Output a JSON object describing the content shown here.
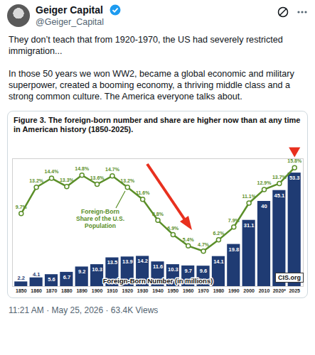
{
  "post": {
    "name": "Geiger Capital",
    "handle": "@Geiger_Capital",
    "text": [
      "They don’t teach that from 1920-1970, the US had severely restricted immigration...",
      "In those 50 years we won WW2, became a global economic and military superpower, created a booming economy, a thriving middle class and a strong common culture. The America everyone talks about."
    ],
    "meta": "11:21 AM · May 25, 2026 · 63.4K Views"
  },
  "chart_data": {
    "type": "bar",
    "title": "Figure 3. The foreign-born number and share are higher now than at any time in American history (1850-2025).",
    "categories": [
      "1850",
      "1860",
      "1870",
      "1880",
      "1890",
      "1900",
      "1910",
      "1920",
      "1930",
      "1940",
      "1950",
      "1960",
      "1970",
      "1980",
      "1990",
      "2000",
      "2010",
      "2020*",
      "2025"
    ],
    "series": [
      {
        "name": "Foreign-Born Number (in millions)",
        "type": "bar",
        "color": "#1f3b73",
        "values": [
          2.2,
          4.1,
          5.6,
          6.7,
          9.2,
          10.3,
          13.5,
          13.9,
          14.2,
          11.6,
          10.3,
          9.7,
          9.6,
          14.1,
          19.8,
          31.1,
          40,
          45.1,
          53.3
        ]
      },
      {
        "name": "Foreign-Born Share of the U.S. Population",
        "type": "line",
        "axis": "y2",
        "color": "#5b8f29",
        "marker": "circle",
        "values": [
          9.7,
          13.2,
          14.4,
          13.3,
          14.8,
          13.6,
          14.7,
          13.2,
          11.6,
          8.8,
          6.9,
          5.4,
          4.7,
          6.2,
          7.9,
          11.1,
          12.9,
          13.7,
          15.8
        ],
        "value_labels": [
          "9.7%",
          "13.2%",
          "14.4%",
          "13.3%",
          "14.8%",
          "13.6%",
          "14.7%",
          "13.2%",
          "11.6%",
          "8.8%",
          "6.9%",
          "5.4%",
          "4.7%",
          "6.2%",
          "7.9%",
          "11.1%",
          "12.9%",
          "13.7%",
          "15.8%"
        ]
      }
    ],
    "ylim": [
      0,
      60
    ],
    "yticks": [],
    "y2lim": [
      0,
      17
    ],
    "y2ticks": [],
    "grid": false,
    "data_labels": true,
    "tick_labels": "x",
    "annotations": [
      "CIS.org"
    ]
  }
}
